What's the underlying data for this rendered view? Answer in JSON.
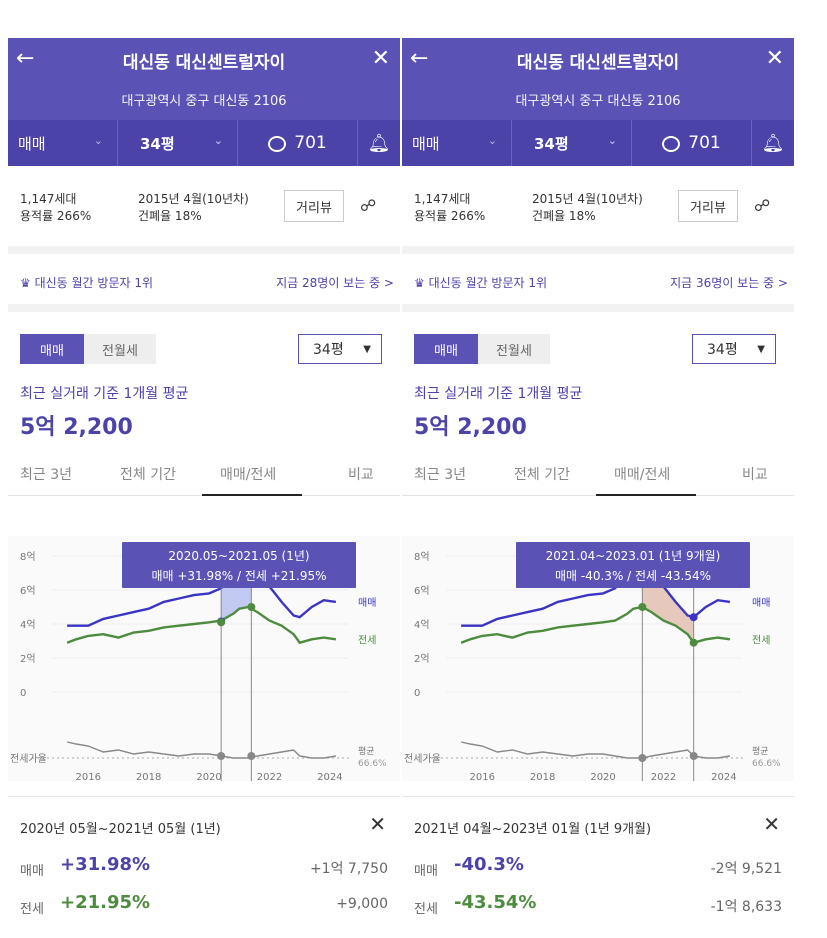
{
  "panels": [
    {
      "header": {
        "title": "대신동 대신센트럴자이",
        "address": "대구광역시 중구 대신동 2106"
      },
      "subbar": {
        "trade": "매매",
        "pyeong": "34평",
        "comments": "701"
      },
      "info": {
        "households": "1,147세대",
        "far": "용적률 266%",
        "built": "2015년 4월(10년차)",
        "bcr": "건폐율 18%",
        "street_view": "거리뷰"
      },
      "visit": {
        "rank": "대신동 월간 방문자 1위",
        "now": "지금 28명이 보는 중 >"
      },
      "segment": {
        "sale": "매매",
        "rent": "전월세"
      },
      "pyeong_select": "34평",
      "avg_label": "최근 실거래 기준 1개월 평균",
      "avg_value": "5억 2,200",
      "tabs": [
        "최근 3년",
        "전체 기간",
        "매매/전세",
        "비교"
      ],
      "active_tab": 2,
      "tooltip": {
        "period": "2020.05~2021.05 (1년)",
        "detail": "매매 +31.98%  /  전세 +21.95%"
      },
      "chart_labels": {
        "sale": "매매",
        "jeonse": "전세",
        "ratio": "전세가율",
        "avg": "평균",
        "avg_value": "66.6%"
      },
      "selection": {
        "range": "2020년 05월~2021년 05월 (1년)",
        "sale_label": "매매",
        "sale_pct": "+31.98%",
        "sale_amount": "+1억 7,750",
        "jeonse_label": "전세",
        "jeonse_pct": "+21.95%",
        "jeonse_amount": "+9,000",
        "fill_color": "#b7bff0"
      },
      "highlight": {
        "start": 2020.4,
        "end": 2021.4,
        "sale_start": 4.15,
        "sale_end": 7.45,
        "jeonse_start": 4.1,
        "jeonse_end": 5.0
      }
    },
    {
      "header": {
        "title": "대신동 대신센트럴자이",
        "address": "대구광역시 중구 대신동 2106"
      },
      "subbar": {
        "trade": "매매",
        "pyeong": "34평",
        "comments": "701"
      },
      "info": {
        "households": "1,147세대",
        "far": "용적률 266%",
        "built": "2015년 4월(10년차)",
        "bcr": "건폐율 18%",
        "street_view": "거리뷰"
      },
      "visit": {
        "rank": "대신동 월간 방문자 1위",
        "now": "지금 36명이 보는 중 >"
      },
      "segment": {
        "sale": "매매",
        "rent": "전월세"
      },
      "pyeong_select": "34평",
      "avg_label": "최근 실거래 기준 1개월 평균",
      "avg_value": "5억 2,200",
      "tabs": [
        "최근 3년",
        "전체 기간",
        "매매/전세",
        "비교"
      ],
      "active_tab": 2,
      "tooltip": {
        "period": "2021.04~2023.01 (1년 9개월)",
        "detail": "매매 -40.3%  /  전세 -43.54%"
      },
      "chart_labels": {
        "sale": "매매",
        "jeonse": "전세",
        "ratio": "전세가율",
        "avg": "평균",
        "avg_value": "66.6%"
      },
      "selection": {
        "range": "2021년 04월~2023년 01월 (1년 9개월)",
        "sale_label": "매매",
        "sale_pct": "-40.3%",
        "sale_amount": "-2억 9,521",
        "jeonse_label": "전세",
        "jeonse_pct": "-43.54%",
        "jeonse_amount": "-1억 8,633",
        "fill_color": "#e2bfb0"
      },
      "highlight": {
        "start": 2021.3,
        "end": 2023.0,
        "sale_start": 7.4,
        "sale_end": 4.4,
        "jeonse_start": 5.0,
        "jeonse_end": 2.9
      }
    }
  ],
  "chart_data": {
    "type": "line",
    "x_ticks": [
      "2016",
      "2018",
      "2020",
      "2022",
      "2024"
    ],
    "y_ticks": [
      "8억",
      "6억",
      "4억",
      "2억",
      "0"
    ],
    "ylim": [
      0,
      8
    ],
    "xlim": [
      2014.8,
      2024.6
    ],
    "x": [
      2015.3,
      2015.6,
      2016.0,
      2016.5,
      2017.0,
      2017.5,
      2018.0,
      2018.5,
      2019.0,
      2019.5,
      2020.0,
      2020.4,
      2020.8,
      2021.0,
      2021.3,
      2021.6,
      2022.0,
      2022.4,
      2022.8,
      2023.0,
      2023.4,
      2023.8,
      2024.2
    ],
    "series": [
      {
        "name": "매매",
        "color": "#3b34c4",
        "values": [
          3.9,
          3.9,
          3.9,
          4.3,
          4.5,
          4.7,
          4.9,
          5.3,
          5.5,
          5.7,
          5.8,
          6.1,
          6.9,
          7.3,
          7.4,
          6.9,
          6.2,
          5.3,
          4.5,
          4.4,
          5.0,
          5.4,
          5.3
        ]
      },
      {
        "name": "전세",
        "color": "#4d8c3e",
        "values": [
          2.9,
          3.1,
          3.3,
          3.4,
          3.2,
          3.5,
          3.6,
          3.8,
          3.9,
          4.0,
          4.1,
          4.2,
          4.6,
          4.9,
          5.0,
          4.7,
          4.2,
          3.9,
          3.4,
          2.9,
          3.1,
          3.2,
          3.1
        ]
      },
      {
        "name": "전세가율",
        "color": "#888888",
        "values": [
          1.6,
          1.55,
          1.5,
          1.35,
          1.4,
          1.3,
          1.35,
          1.3,
          1.25,
          1.3,
          1.3,
          1.25,
          1.2,
          1.2,
          1.2,
          1.25,
          1.3,
          1.35,
          1.4,
          1.25,
          1.2,
          1.2,
          1.25
        ]
      }
    ]
  }
}
